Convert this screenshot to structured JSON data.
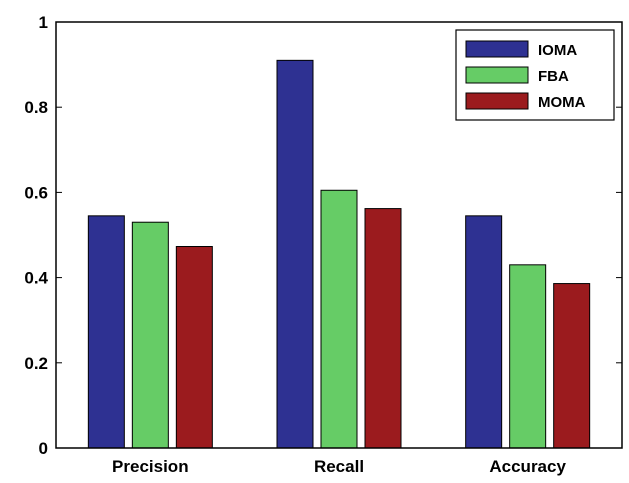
{
  "chart_data": {
    "type": "bar",
    "title": "",
    "xlabel": "",
    "ylabel": "",
    "categories": [
      "Precision",
      "Recall",
      "Accuracy"
    ],
    "series": [
      {
        "name": "IOMA",
        "color": "#2e3192",
        "values": [
          0.545,
          0.91,
          0.545
        ]
      },
      {
        "name": "FBA",
        "color": "#66cc66",
        "values": [
          0.53,
          0.605,
          0.43
        ]
      },
      {
        "name": "MOMA",
        "color": "#9b1b1e",
        "values": [
          0.473,
          0.562,
          0.386
        ]
      }
    ],
    "ylim": [
      0,
      1
    ],
    "yticks": [
      0,
      0.2,
      0.4,
      0.6,
      0.8,
      1
    ],
    "ytick_labels": [
      "0",
      "0.2",
      "0.4",
      "0.6",
      "0.8",
      "1"
    ],
    "grid": false,
    "legend_position": "top-right"
  }
}
